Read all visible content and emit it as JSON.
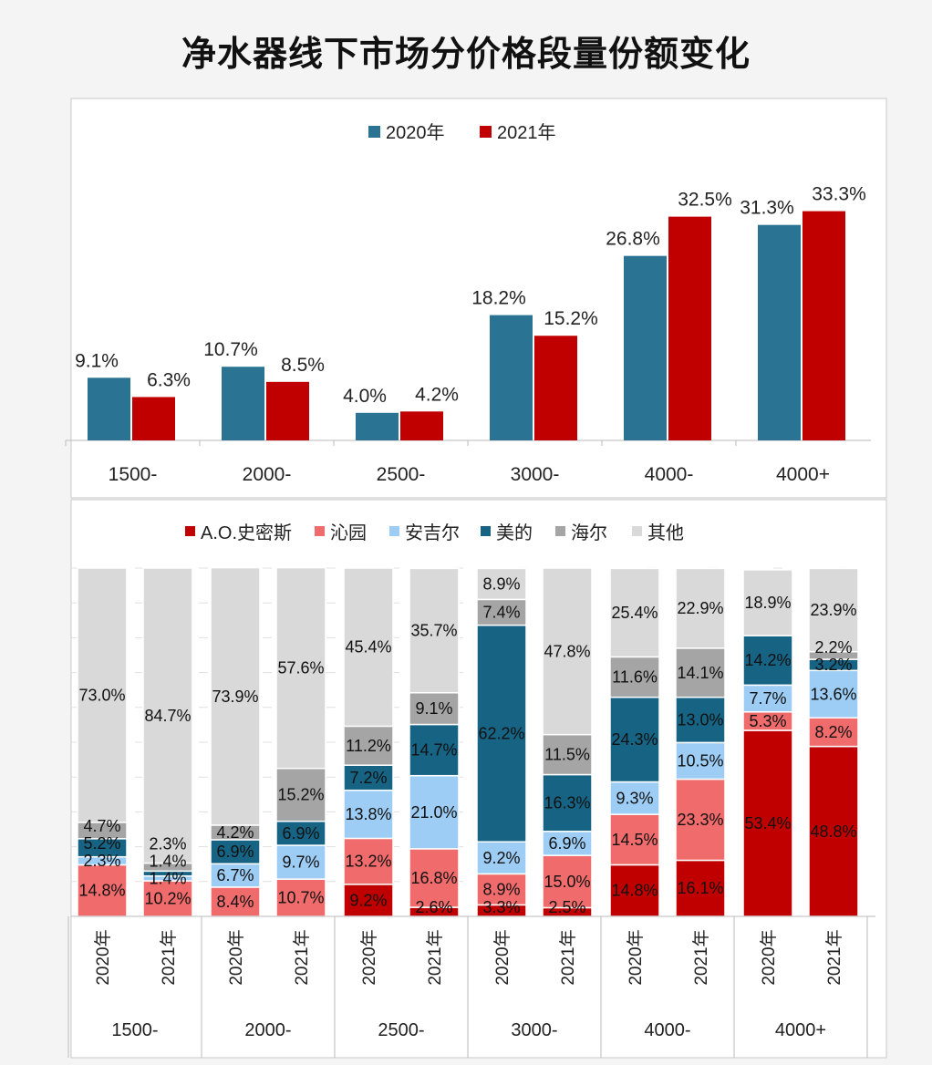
{
  "title": "净水器线下市场分价格段量份额变化",
  "chart_data": [
    {
      "type": "bar",
      "categories": [
        "1500-",
        "2000-",
        "2500-",
        "3000-",
        "4000-",
        "4000+"
      ],
      "series": [
        {
          "name": "2020年",
          "color": "#2b7393",
          "values": [
            9.1,
            10.7,
            4.0,
            18.2,
            26.8,
            31.3
          ]
        },
        {
          "name": "2021年",
          "color": "#c00000",
          "values": [
            6.3,
            8.5,
            4.2,
            15.2,
            32.5,
            33.3
          ]
        }
      ],
      "unit": "%",
      "legend": "top",
      "grid": false
    },
    {
      "type": "bar",
      "stacked": true,
      "categories": [
        "1500-",
        "2000-",
        "2500-",
        "3000-",
        "4000-",
        "4000+"
      ],
      "sub_categories": [
        "2020年",
        "2021年"
      ],
      "series": [
        {
          "name": "A.O.史密斯",
          "color": "#c00000",
          "values": [
            [
              0,
              0
            ],
            [
              0,
              0
            ],
            [
              9.2,
              2.6
            ],
            [
              3.3,
              2.5
            ],
            [
              14.8,
              16.1
            ],
            [
              53.4,
              48.8
            ]
          ]
        },
        {
          "name": "沁园",
          "color": "#f06b6b",
          "values": [
            [
              14.8,
              10.2
            ],
            [
              8.4,
              10.7
            ],
            [
              13.2,
              16.8
            ],
            [
              8.9,
              15.0
            ],
            [
              14.5,
              23.3
            ],
            [
              5.3,
              8.2
            ]
          ]
        },
        {
          "name": "安吉尔",
          "color": "#9dcdf5",
          "values": [
            [
              2.3,
              1.4
            ],
            [
              6.7,
              9.7
            ],
            [
              13.8,
              21.0
            ],
            [
              9.2,
              6.9
            ],
            [
              9.3,
              10.5
            ],
            [
              7.7,
              13.6
            ]
          ]
        },
        {
          "name": "美的",
          "color": "#166383",
          "values": [
            [
              5.2,
              1.4
            ],
            [
              6.9,
              6.9
            ],
            [
              7.2,
              14.7
            ],
            [
              62.2,
              16.3
            ],
            [
              24.3,
              13.0
            ],
            [
              14.2,
              3.2
            ]
          ]
        },
        {
          "name": "海尔",
          "color": "#a5a5a5",
          "values": [
            [
              4.7,
              2.3
            ],
            [
              4.2,
              15.2
            ],
            [
              11.2,
              9.1
            ],
            [
              7.4,
              11.5
            ],
            [
              11.6,
              14.1
            ],
            [
              0,
              2.2
            ]
          ]
        },
        {
          "name": "其他",
          "color": "#d9d9d9",
          "values": [
            [
              73.0,
              84.7
            ],
            [
              73.9,
              57.6
            ],
            [
              45.4,
              35.7
            ],
            [
              8.9,
              47.8
            ],
            [
              25.4,
              22.9
            ],
            [
              18.9,
              23.9
            ]
          ]
        }
      ],
      "unit": "%",
      "ylim": [
        0,
        100
      ],
      "legend": "top",
      "grid": true
    }
  ]
}
